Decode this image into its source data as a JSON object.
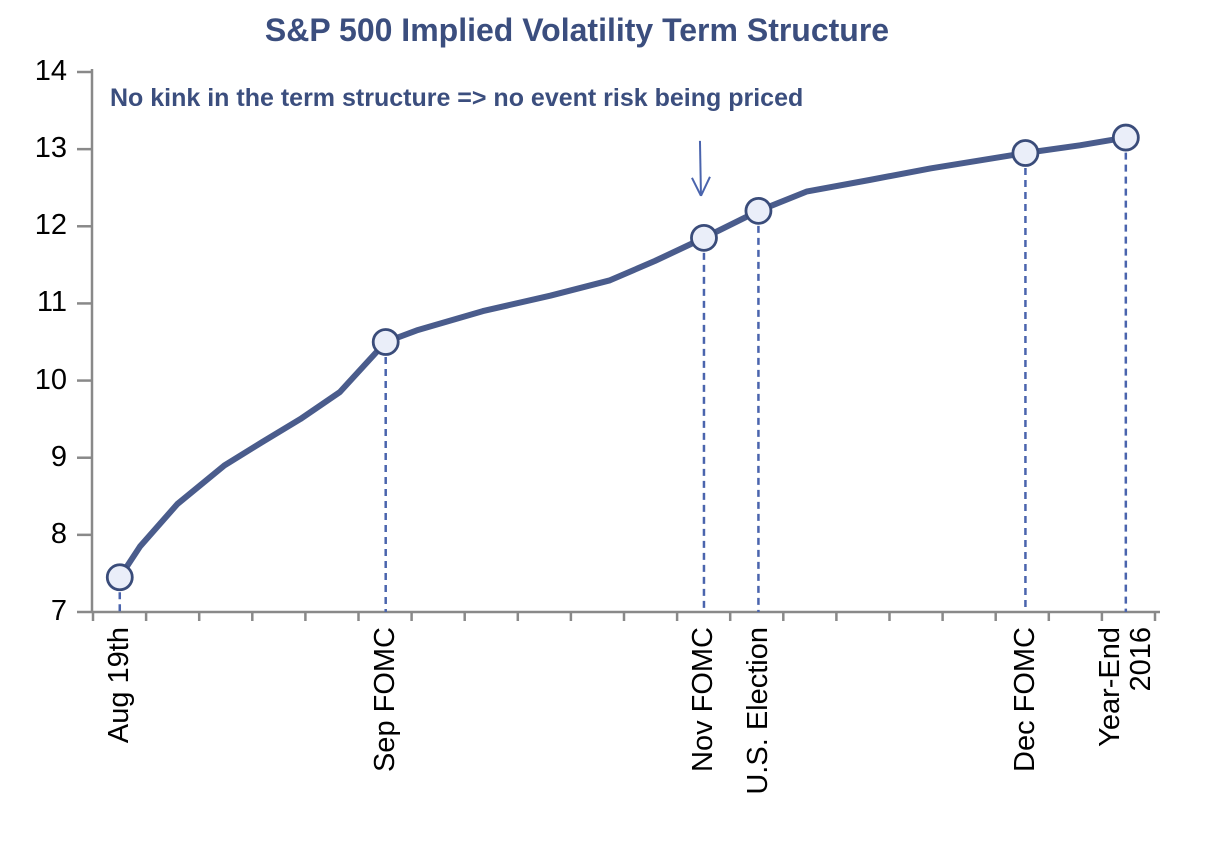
{
  "chart_data": {
    "type": "line",
    "title": "S&P 500 Implied Volatility Term Structure",
    "annotation": "No kink in the term structure => no event risk being priced",
    "arrow_points_to": "Nov FOMC",
    "xlabel": "",
    "ylabel": "",
    "ylim": [
      7,
      14
    ],
    "yticks": [
      7,
      8,
      9,
      10,
      11,
      12,
      13,
      14
    ],
    "x_minor_tick_count": 21,
    "grid": false,
    "legend": false,
    "events": [
      {
        "label": "Aug 19th",
        "x": 0.026,
        "value": 7.45
      },
      {
        "label": "Sep FOMC",
        "x": 0.275,
        "value": 10.5
      },
      {
        "label": "Nov FOMC",
        "x": 0.573,
        "value": 11.85
      },
      {
        "label": "U.S. Election",
        "x": 0.624,
        "value": 12.2
      },
      {
        "label": "Dec FOMC",
        "x": 0.874,
        "value": 12.95
      },
      {
        "label": "Year-End\n2016",
        "x": 0.968,
        "value": 13.15
      }
    ],
    "curve": [
      [
        0.026,
        7.45
      ],
      [
        0.045,
        7.85
      ],
      [
        0.08,
        8.4
      ],
      [
        0.124,
        8.9
      ],
      [
        0.159,
        9.2
      ],
      [
        0.195,
        9.5
      ],
      [
        0.232,
        9.85
      ],
      [
        0.275,
        10.5
      ],
      [
        0.304,
        10.65
      ],
      [
        0.366,
        10.9
      ],
      [
        0.429,
        11.1
      ],
      [
        0.485,
        11.3
      ],
      [
        0.527,
        11.55
      ],
      [
        0.573,
        11.85
      ],
      [
        0.624,
        12.2
      ],
      [
        0.669,
        12.45
      ],
      [
        0.728,
        12.6
      ],
      [
        0.785,
        12.75
      ],
      [
        0.874,
        12.95
      ],
      [
        0.925,
        13.05
      ],
      [
        0.968,
        13.15
      ]
    ],
    "colors": {
      "title_text": "#3b4e7e",
      "line": "#4a5c8c",
      "marker_fill": "#eaeef9",
      "marker_stroke": "#3a4c7a",
      "dashed_line": "#4a64ad",
      "arrow": "#4a64ad",
      "axis": "#898989",
      "tick_label": "#000000"
    }
  }
}
